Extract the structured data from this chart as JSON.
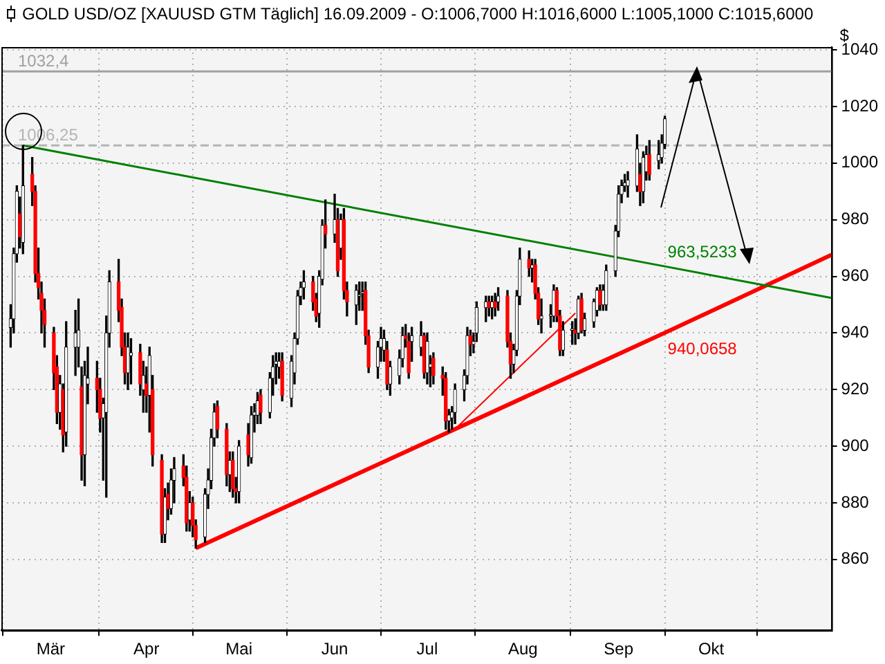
{
  "chart_data": {
    "type": "candlestick",
    "title": "GOLD USD/OZ [XAUUSD GTM  Täglich] 16.09.2009 - O:1006,7000 H:1016,6000 L:1005,1000 C:1015,6000",
    "ylabel": "$",
    "x": [
      "2009-02-16",
      "2009-02-17",
      "2009-02-18",
      "2009-02-19",
      "2009-02-20",
      "2009-02-23",
      "2009-02-24",
      "2009-02-25",
      "2009-02-26",
      "2009-02-27",
      "2009-03-02",
      "2009-03-03",
      "2009-03-04",
      "2009-03-05",
      "2009-03-06",
      "2009-03-09",
      "2009-03-10",
      "2009-03-11",
      "2009-03-12",
      "2009-03-13",
      "2009-03-16",
      "2009-03-17",
      "2009-03-18",
      "2009-03-19",
      "2009-03-20",
      "2009-03-23",
      "2009-03-24",
      "2009-03-25",
      "2009-03-26",
      "2009-03-27",
      "2009-03-30",
      "2009-03-31",
      "2009-04-01",
      "2009-04-02",
      "2009-04-03",
      "2009-04-06",
      "2009-04-07",
      "2009-04-08",
      "2009-04-09",
      "2009-04-10",
      "2009-04-13",
      "2009-04-14",
      "2009-04-15",
      "2009-04-16",
      "2009-04-17",
      "2009-04-20",
      "2009-04-21",
      "2009-04-22",
      "2009-04-23",
      "2009-04-24",
      "2009-04-27",
      "2009-04-28",
      "2009-04-29",
      "2009-04-30",
      "2009-05-01",
      "2009-05-04",
      "2009-05-05",
      "2009-05-06",
      "2009-05-07",
      "2009-05-08",
      "2009-05-11",
      "2009-05-12",
      "2009-05-13",
      "2009-05-14",
      "2009-05-15",
      "2009-05-18",
      "2009-05-19",
      "2009-05-20",
      "2009-05-21",
      "2009-05-22",
      "2009-05-25",
      "2009-05-26",
      "2009-05-27",
      "2009-05-28",
      "2009-05-29",
      "2009-06-01",
      "2009-06-02",
      "2009-06-03",
      "2009-06-04",
      "2009-06-05",
      "2009-06-08",
      "2009-06-09",
      "2009-06-10",
      "2009-06-11",
      "2009-06-12",
      "2009-06-15",
      "2009-06-16",
      "2009-06-17",
      "2009-06-18",
      "2009-06-19",
      "2009-06-22",
      "2009-06-23",
      "2009-06-24",
      "2009-06-25",
      "2009-06-26",
      "2009-06-29",
      "2009-06-30",
      "2009-07-01",
      "2009-07-02",
      "2009-07-03",
      "2009-07-06",
      "2009-07-07",
      "2009-07-08",
      "2009-07-09",
      "2009-07-10",
      "2009-07-13",
      "2009-07-14",
      "2009-07-15",
      "2009-07-16",
      "2009-07-17",
      "2009-07-20",
      "2009-07-21",
      "2009-07-22",
      "2009-07-23",
      "2009-07-24",
      "2009-07-27",
      "2009-07-28",
      "2009-07-29",
      "2009-07-30",
      "2009-07-31",
      "2009-08-03",
      "2009-08-04",
      "2009-08-05",
      "2009-08-06",
      "2009-08-07",
      "2009-08-10",
      "2009-08-11",
      "2009-08-12",
      "2009-08-13",
      "2009-08-14",
      "2009-08-17",
      "2009-08-18",
      "2009-08-19",
      "2009-08-20",
      "2009-08-21",
      "2009-08-24",
      "2009-08-25",
      "2009-08-26",
      "2009-08-27",
      "2009-08-28",
      "2009-08-31",
      "2009-09-01",
      "2009-09-02",
      "2009-09-03",
      "2009-09-04",
      "2009-09-07",
      "2009-09-08",
      "2009-09-09",
      "2009-09-10",
      "2009-09-11",
      "2009-09-14",
      "2009-09-15",
      "2009-09-16"
    ],
    "ohlc": [
      [
        942,
        950,
        935,
        945
      ],
      [
        945,
        970,
        940,
        968
      ],
      [
        968,
        992,
        965,
        990
      ],
      [
        982,
        988,
        970,
        974
      ],
      [
        972,
        1006.25,
        968,
        992
      ],
      [
        996,
        1002,
        985,
        990
      ],
      [
        990,
        992,
        958,
        961
      ],
      [
        961,
        970,
        952,
        956
      ],
      [
        954,
        958,
        940,
        948
      ],
      [
        948,
        952,
        935,
        943
      ],
      [
        940,
        942,
        920,
        926
      ],
      [
        928,
        932,
        908,
        912
      ],
      [
        912,
        925,
        906,
        922
      ],
      [
        920,
        922,
        898,
        904
      ],
      [
        905,
        944,
        900,
        935
      ],
      [
        935,
        948,
        925,
        940
      ],
      [
        935,
        952,
        928,
        941
      ],
      [
        921,
        928,
        888,
        897
      ],
      [
        897,
        930,
        886,
        925
      ],
      [
        922,
        935,
        915,
        924
      ],
      [
        924,
        930,
        912,
        920
      ],
      [
        920,
        924,
        905,
        910
      ],
      [
        910,
        917,
        888,
        915
      ],
      [
        912,
        946,
        882,
        940
      ],
      [
        940,
        962,
        935,
        958
      ],
      [
        958,
        966,
        944,
        948
      ],
      [
        949,
        952,
        932,
        935
      ],
      [
        935,
        940,
        922,
        926
      ],
      [
        926,
        940,
        920,
        935
      ],
      [
        932,
        938,
        922,
        933
      ],
      [
        933,
        936,
        918,
        922
      ],
      [
        920,
        930,
        912,
        925
      ],
      [
        922,
        928,
        912,
        918
      ],
      [
        918,
        935,
        905,
        932
      ],
      [
        920,
        925,
        893,
        897
      ],
      [
        895,
        897,
        866,
        869
      ],
      [
        869,
        885,
        866,
        882
      ],
      [
        883,
        887,
        874,
        878
      ],
      [
        878,
        892,
        876,
        888
      ],
      [
        888,
        896,
        880,
        892
      ],
      [
        893,
        897,
        886,
        889
      ],
      [
        889,
        893,
        870,
        873
      ],
      [
        874,
        884,
        870,
        880
      ],
      [
        880,
        882,
        868,
        872
      ],
      [
        872,
        874,
        864,
        867
      ],
      [
        868,
        885,
        866,
        883
      ],
      [
        883,
        892,
        878,
        888
      ],
      [
        888,
        906,
        885,
        903
      ],
      [
        903,
        915,
        900,
        912
      ],
      [
        914,
        916,
        903,
        906
      ],
      [
        906,
        908,
        886,
        890
      ],
      [
        890,
        898,
        884,
        895
      ],
      [
        895,
        898,
        882,
        885
      ],
      [
        885,
        889,
        880,
        884
      ],
      [
        884,
        902,
        880,
        900
      ],
      [
        904,
        908,
        893,
        897
      ],
      [
        896,
        914,
        894,
        911
      ],
      [
        911,
        915,
        905,
        912
      ],
      [
        911,
        919,
        908,
        916
      ],
      [
        918,
        920,
        908,
        912
      ],
      [
        912,
        926,
        910,
        924
      ],
      [
        924,
        932,
        918,
        928
      ],
      [
        929,
        933,
        922,
        930
      ],
      [
        928,
        933,
        924,
        930
      ],
      [
        930,
        933,
        916,
        918
      ],
      [
        917,
        932,
        914,
        930
      ],
      [
        926,
        940,
        922,
        938
      ],
      [
        938,
        955,
        936,
        953
      ],
      [
        953,
        958,
        950,
        956
      ],
      [
        956,
        962,
        952,
        958
      ],
      [
        958,
        960,
        948,
        951
      ],
      [
        952,
        954,
        944,
        946
      ],
      [
        947,
        962,
        942,
        960
      ],
      [
        959,
        980,
        957,
        978
      ],
      [
        978,
        987,
        970,
        975
      ],
      [
        975,
        989,
        972,
        980
      ],
      [
        980,
        984,
        960,
        962
      ],
      [
        970,
        982,
        966,
        980
      ],
      [
        980,
        984,
        952,
        955
      ],
      [
        955,
        958,
        946,
        951
      ],
      [
        950,
        957,
        943,
        955
      ],
      [
        953,
        958,
        948,
        953
      ],
      [
        954,
        958,
        948,
        954
      ],
      [
        955,
        958,
        936,
        939
      ],
      [
        939,
        941,
        926,
        928
      ],
      [
        928,
        937,
        924,
        935
      ],
      [
        935,
        942,
        930,
        938
      ],
      [
        934,
        941,
        930,
        938
      ],
      [
        934,
        937,
        920,
        922
      ],
      [
        922,
        930,
        918,
        928
      ],
      [
        925,
        934,
        922,
        931
      ],
      [
        931,
        942,
        928,
        939
      ],
      [
        939,
        943,
        935,
        938
      ],
      [
        937,
        940,
        924,
        926
      ],
      [
        937,
        942,
        930,
        939
      ],
      [
        935,
        944,
        932,
        939
      ],
      [
        939,
        940,
        924,
        926
      ],
      [
        926,
        940,
        922,
        937
      ],
      [
        928,
        932,
        921,
        929
      ],
      [
        931,
        933,
        922,
        925
      ],
      [
        925,
        928,
        918,
        924
      ],
      [
        924,
        926,
        906,
        909
      ],
      [
        909,
        913,
        905,
        911
      ],
      [
        910,
        914,
        906,
        912
      ],
      [
        912,
        922,
        908,
        920
      ],
      [
        920,
        927,
        916,
        925
      ],
      [
        925,
        942,
        922,
        939
      ],
      [
        939,
        941,
        932,
        936
      ],
      [
        936,
        940,
        933,
        937
      ],
      [
        940,
        951,
        937,
        949
      ],
      [
        949,
        953,
        944,
        951
      ],
      [
        951,
        953,
        946,
        949
      ],
      [
        949,
        953,
        945,
        951
      ],
      [
        951,
        954,
        946,
        949
      ],
      [
        951,
        956,
        948,
        953
      ],
      [
        953,
        955,
        935,
        937
      ],
      [
        937,
        940,
        924,
        929
      ],
      [
        929,
        936,
        926,
        934
      ],
      [
        934,
        955,
        932,
        953
      ],
      [
        953,
        970,
        950,
        966
      ],
      [
        966,
        969,
        960,
        963
      ],
      [
        963,
        966,
        958,
        964
      ],
      [
        964,
        966,
        952,
        954
      ],
      [
        954,
        956,
        943,
        945
      ],
      [
        945,
        952,
        940,
        946
      ],
      [
        946,
        950,
        942,
        946
      ],
      [
        946,
        957,
        944,
        955
      ],
      [
        955,
        956,
        944,
        946
      ],
      [
        946,
        948,
        932,
        934
      ],
      [
        934,
        944,
        932,
        941
      ],
      [
        941,
        944,
        936,
        941
      ],
      [
        941,
        945,
        936,
        940
      ],
      [
        940,
        953,
        938,
        952
      ],
      [
        952,
        954,
        940,
        941
      ],
      [
        941,
        947,
        939,
        945
      ],
      [
        944,
        952,
        942,
        951
      ],
      [
        948,
        956,
        946,
        955
      ],
      [
        955,
        957,
        948,
        950
      ],
      [
        950,
        957,
        948,
        955
      ],
      [
        950,
        964,
        948,
        962
      ],
      [
        962,
        978,
        960,
        976
      ],
      [
        976,
        992,
        974,
        989
      ],
      [
        989,
        994,
        986,
        992
      ],
      [
        992,
        996,
        990,
        993
      ],
      [
        992,
        997,
        988,
        994
      ],
      [
        992,
        1010,
        990,
        1005
      ],
      [
        996,
        1000,
        985,
        990
      ],
      [
        990,
        1004,
        986,
        1002
      ],
      [
        997,
        1006,
        994,
        1003
      ],
      [
        1003,
        1008,
        994,
        996
      ],
      [
        1001,
        1008,
        998,
        1003
      ],
      [
        1002,
        1010,
        1000,
        1007
      ],
      [
        1006.7,
        1016.6,
        1005.1,
        1015.6
      ]
    ],
    "series": [
      {
        "type": "line",
        "x": [
          "2009-02-20",
          "2009-09-16",
          "2009-11-09"
        ],
        "values": [
          1006.25,
          963.5233,
          952.4
        ],
        "color": "#008000"
      },
      {
        "type": "line",
        "x": [
          "2009-04-17",
          "2009-09-16",
          "2009-11-09"
        ],
        "values": [
          864,
          940.0658,
          967.6
        ],
        "color": "#ff0000"
      },
      {
        "type": "line",
        "x": [
          "2009-07-10",
          "2009-08-18"
        ],
        "values": [
          906,
          947
        ],
        "color": "#ff0000"
      }
    ],
    "xlim": [
      "2009-02-13",
      "2009-11-09"
    ],
    "xticks": [
      {
        "value": "2009-03-01",
        "label": "Mär"
      },
      {
        "value": "2009-04-01",
        "label": "Apr"
      },
      {
        "value": "2009-05-01",
        "label": "Mai"
      },
      {
        "value": "2009-06-01",
        "label": "Jun"
      },
      {
        "value": "2009-07-01",
        "label": "Jul"
      },
      {
        "value": "2009-08-01",
        "label": "Aug"
      },
      {
        "value": "2009-09-01",
        "label": "Sep"
      },
      {
        "value": "2009-10-01",
        "label": "Okt"
      }
    ],
    "ylim": [
      835,
      1041
    ],
    "yticks": [
      860,
      880,
      900,
      920,
      940,
      960,
      980,
      1000,
      1020,
      1040
    ],
    "grid": true,
    "ref_lines": [
      {
        "axis": "y",
        "value": 1032.4,
        "label": "1032,4",
        "color": "#a0a0a0"
      },
      {
        "axis": "y",
        "value": 1006.25,
        "label": "1006,25",
        "color": "#b4b4b4",
        "line_style": "dashed"
      }
    ],
    "annotations": [
      {
        "text": "963,5233",
        "x": "2009-09-16",
        "y": 963.5233
      },
      {
        "text": "940,0658",
        "x": "2009-09-16",
        "y": 940.0658
      }
    ]
  }
}
